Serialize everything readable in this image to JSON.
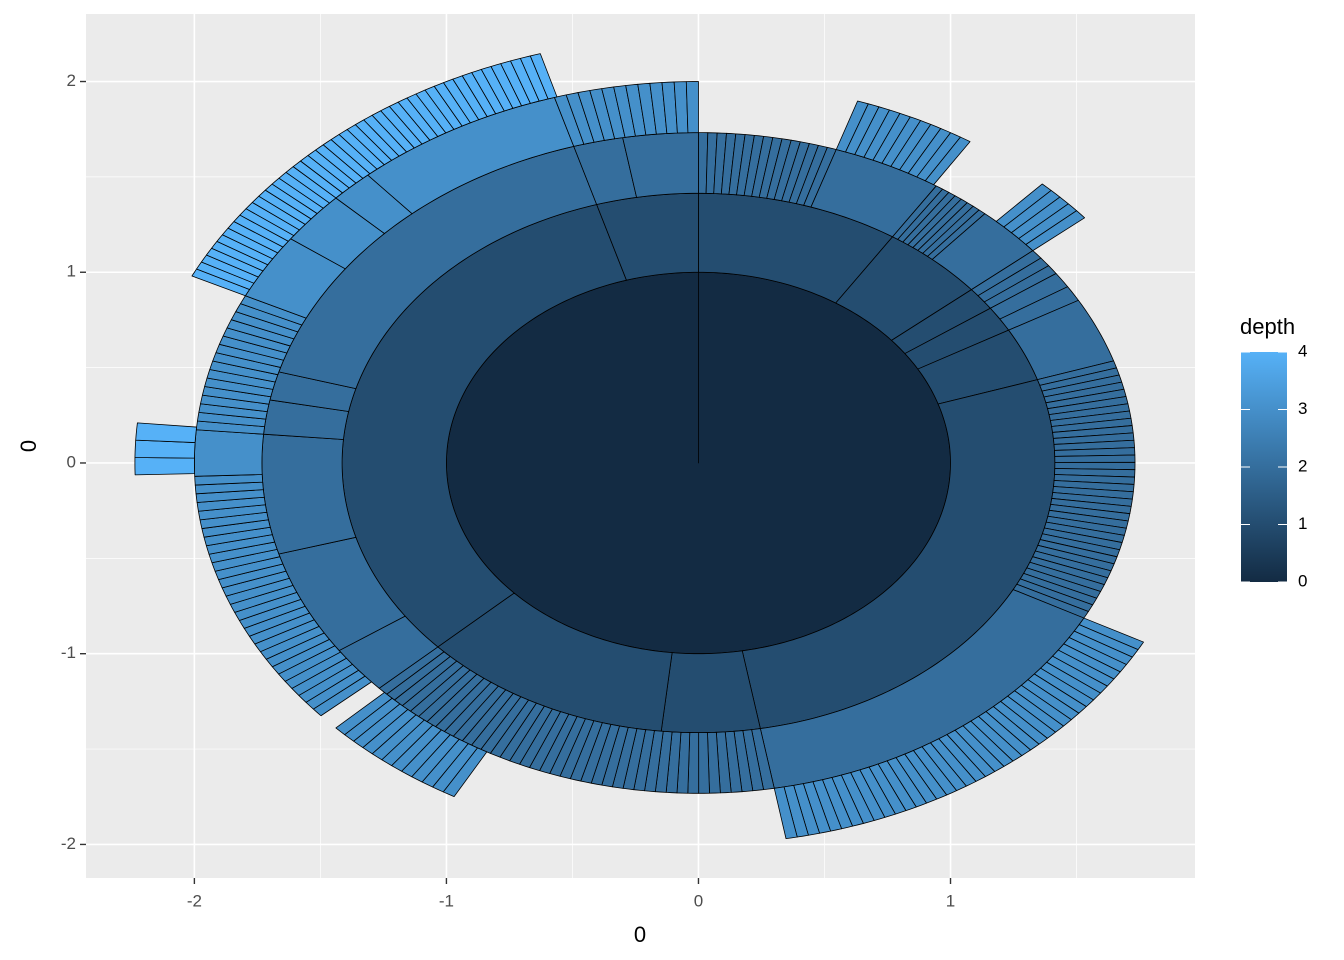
{
  "chart_data": {
    "type": "sunburst",
    "xlabel": "0",
    "ylabel": "0",
    "legend_title": "depth",
    "legend_ticks": [
      0,
      1,
      2,
      3,
      4
    ],
    "color_low": "#132B43",
    "color_high": "#56B1F7",
    "color_lim": [
      0,
      4
    ],
    "xlim": [
      -2.43,
      1.97
    ],
    "ylim": [
      -2.176,
      2.354
    ],
    "xticks": [
      -2,
      -1,
      0,
      1
    ],
    "yticks": [
      -2,
      -1,
      0,
      1,
      2
    ],
    "xminor": [
      -1.5,
      -0.5,
      0.5,
      1.5
    ],
    "yminor": [
      -1.5,
      -0.5,
      0.5,
      1.5
    ],
    "grid": true,
    "radii": [
      0,
      1,
      1.414,
      1.732,
      2,
      2.236
    ],
    "segments": [
      {
        "depth": 0,
        "start": 0,
        "end": 360
      },
      {
        "depth": 1,
        "start": 0,
        "end": 33
      },
      {
        "depth": 1,
        "start": 33,
        "end": 50
      },
      {
        "depth": 1,
        "start": 50,
        "end": 55
      },
      {
        "depth": 1,
        "start": 55,
        "end": 60.5
      },
      {
        "depth": 1,
        "start": 60.5,
        "end": 72
      },
      {
        "depth": 1,
        "start": 72,
        "end": 170
      },
      {
        "depth": 1,
        "start": 170,
        "end": 186
      },
      {
        "depth": 1,
        "start": 186,
        "end": 227
      },
      {
        "depth": 1,
        "start": 227,
        "end": 343.4
      },
      {
        "depth": 1,
        "start": 343.4,
        "end": 360
      },
      {
        "depth": 2,
        "start": 0,
        "end": 18.4,
        "slices": 15
      },
      {
        "depth": 2,
        "start": 18.4,
        "end": 33
      },
      {
        "depth": 2,
        "start": 33,
        "end": 41,
        "slices": 8
      },
      {
        "depth": 2,
        "start": 41,
        "end": 50
      },
      {
        "depth": 2,
        "start": 50,
        "end": 55,
        "slices": 3
      },
      {
        "depth": 2,
        "start": 55,
        "end": 60.5,
        "slices": 2
      },
      {
        "depth": 2,
        "start": 60.5,
        "end": 72
      },
      {
        "depth": 2,
        "start": 72,
        "end": 118,
        "slices": 36
      },
      {
        "depth": 2,
        "start": 118,
        "end": 170
      },
      {
        "depth": 2,
        "start": 170,
        "end": 227,
        "slices": 40
      },
      {
        "depth": 2,
        "start": 227,
        "end": 235.4
      },
      {
        "depth": 2,
        "start": 235.4,
        "end": 254
      },
      {
        "depth": 2,
        "start": 254,
        "end": 275
      },
      {
        "depth": 2,
        "start": 275,
        "end": 281
      },
      {
        "depth": 2,
        "start": 281,
        "end": 286
      },
      {
        "depth": 2,
        "start": 286,
        "end": 343.4
      },
      {
        "depth": 2,
        "start": 343.4,
        "end": 350
      },
      {
        "depth": 2,
        "start": 350,
        "end": 360
      },
      {
        "depth": 3,
        "start": 18.4,
        "end": 32.6,
        "slices": 11
      },
      {
        "depth": 3,
        "start": 43,
        "end": 50,
        "slices": 5
      },
      {
        "depth": 3,
        "start": 118,
        "end": 170,
        "slices": 40
      },
      {
        "depth": 3,
        "start": 209,
        "end": 226,
        "slices": 12
      },
      {
        "depth": 3,
        "start": 228.5,
        "end": 268,
        "slices": 30
      },
      {
        "depth": 3,
        "start": 268,
        "end": 275
      },
      {
        "depth": 3,
        "start": 275,
        "end": 296,
        "slices": 16
      },
      {
        "depth": 3,
        "start": 296,
        "end": 306
      },
      {
        "depth": 3,
        "start": 306,
        "end": 314
      },
      {
        "depth": 3,
        "start": 314,
        "end": 319
      },
      {
        "depth": 3,
        "start": 319,
        "end": 343.4
      },
      {
        "depth": 3,
        "start": 343.4,
        "end": 360,
        "slices": 12
      },
      {
        "depth": 4,
        "start": 268.4,
        "end": 275.4,
        "slices": 3
      },
      {
        "depth": 4,
        "start": 296,
        "end": 343.7,
        "slices": 45
      }
    ]
  }
}
